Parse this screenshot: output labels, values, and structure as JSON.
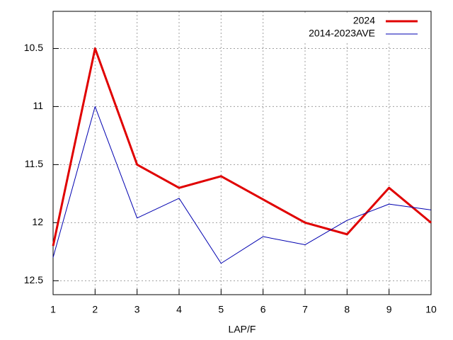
{
  "chart_data": {
    "type": "line",
    "xlabel": "LAP/F",
    "x": [
      1,
      2,
      3,
      4,
      5,
      6,
      7,
      8,
      9,
      10
    ],
    "series": [
      {
        "name": "2024",
        "color": "#e00000",
        "values": [
          12.2,
          10.5,
          11.5,
          11.7,
          11.6,
          11.8,
          12.0,
          12.1,
          11.7,
          12.0
        ]
      },
      {
        "name": "2014-2023AVE",
        "color": "#0000b0",
        "values": [
          12.3,
          11.0,
          11.96,
          11.79,
          12.35,
          12.12,
          12.19,
          11.98,
          11.84,
          11.89
        ]
      }
    ],
    "xlim": [
      1,
      10
    ],
    "xticks": [
      1,
      2,
      3,
      4,
      5,
      6,
      7,
      8,
      9,
      10
    ],
    "ylim": [
      12.62,
      10.18
    ],
    "yticks": [
      10.5,
      11,
      11.5,
      12,
      12.5
    ],
    "grid": true,
    "legend": "top-right"
  }
}
